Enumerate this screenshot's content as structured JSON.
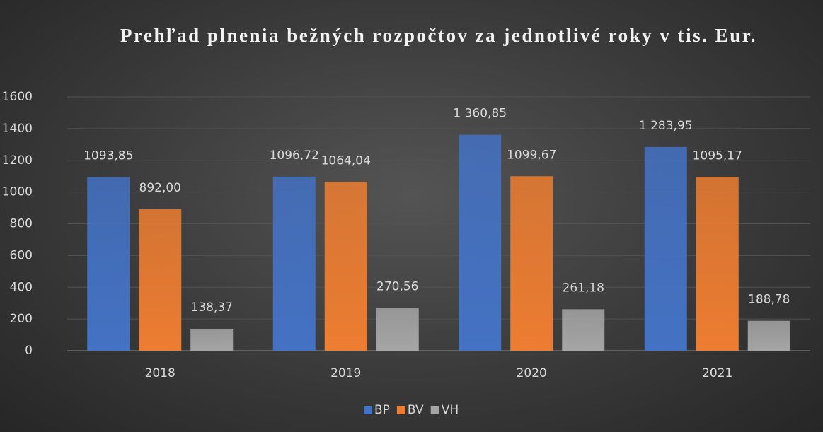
{
  "chart_data": {
    "type": "bar",
    "title": "Prehľad plnenia bežných rozpočtov za jednotlivé roky v tis. Eur.",
    "categories": [
      "2018",
      "2019",
      "2020",
      "2021"
    ],
    "series": [
      {
        "name": "BP",
        "color": "#4472c4",
        "values": [
          1093.85,
          1096.72,
          1360.85,
          1283.95
        ],
        "value_labels": [
          "1093,85",
          "1096,72",
          "1 360,85",
          "1 283,95"
        ]
      },
      {
        "name": "BV",
        "color": "#ed7d31",
        "values": [
          892.0,
          1064.04,
          1099.67,
          1095.17
        ],
        "value_labels": [
          "892,00",
          "1064,04",
          "1099,67",
          "1095,17"
        ]
      },
      {
        "name": "VH",
        "color": "#a5a5a5",
        "values": [
          138.37,
          270.56,
          261.18,
          188.78
        ],
        "value_labels": [
          "138,37",
          "270,56",
          "261,18",
          "188,78"
        ]
      }
    ],
    "ylim": [
      0,
      1600
    ],
    "yticks": [
      0,
      200,
      400,
      600,
      800,
      1000,
      1200,
      1400,
      1600
    ],
    "grid": true,
    "legend": "bottom"
  }
}
